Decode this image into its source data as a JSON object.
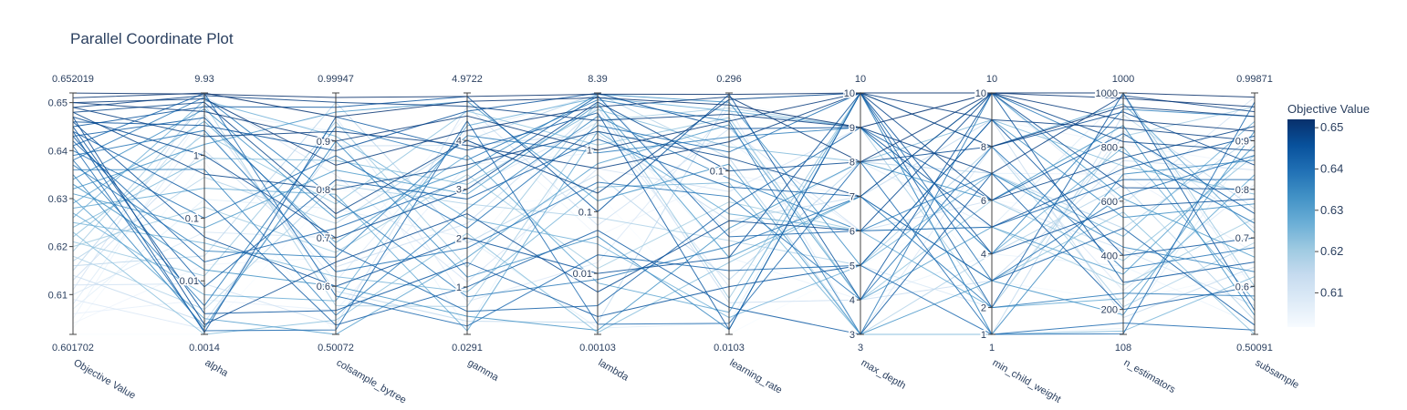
{
  "title": "Parallel Coordinate Plot",
  "colorbar": {
    "title": "Objective Value",
    "colorscale": [
      "#f7fbff",
      "#deebf7",
      "#c6dbef",
      "#9ecae1",
      "#6baed6",
      "#4292c6",
      "#2171b5",
      "#08519c",
      "#08306b"
    ],
    "ticks": [
      "0.61",
      "0.62",
      "0.63",
      "0.64",
      "0.65"
    ],
    "tick_values": [
      0.61,
      0.62,
      0.63,
      0.64,
      0.65
    ],
    "range": [
      0.601702,
      0.652019
    ]
  },
  "chart_data": {
    "type": "parallel_coordinates",
    "title": "Parallel Coordinate Plot",
    "color_variable": "Objective Value",
    "dimensions": [
      {
        "label": "Objective Value",
        "min_label": "0.601702",
        "max_label": "0.652019",
        "range": [
          0.601702,
          0.652019
        ],
        "scale": "linear",
        "ticks": [
          0.61,
          0.62,
          0.63,
          0.64,
          0.65
        ],
        "tick_labels": [
          "0.61",
          "0.62",
          "0.63",
          "0.64",
          "0.65"
        ]
      },
      {
        "label": "alpha",
        "min_label": "0.0014",
        "max_label": "9.93",
        "range": [
          0.0014,
          9.93
        ],
        "scale": "log",
        "ticks": [
          0.01,
          0.1,
          1
        ],
        "tick_labels": [
          "0.01",
          "0.1",
          "1"
        ]
      },
      {
        "label": "colsample_bytree",
        "min_label": "0.50072",
        "max_label": "0.99947",
        "range": [
          0.50072,
          0.99947
        ],
        "scale": "linear",
        "ticks": [
          0.6,
          0.7,
          0.8,
          0.9
        ],
        "tick_labels": [
          "0.6",
          "0.7",
          "0.8",
          "0.9"
        ]
      },
      {
        "label": "gamma",
        "min_label": "0.0291",
        "max_label": "4.9722",
        "range": [
          0.0291,
          4.9722
        ],
        "scale": "linear",
        "ticks": [
          1,
          2,
          3,
          4
        ],
        "tick_labels": [
          "1",
          "2",
          "3",
          "4"
        ]
      },
      {
        "label": "lambda",
        "min_label": "0.00103",
        "max_label": "8.39",
        "range": [
          0.00103,
          8.39
        ],
        "scale": "log",
        "ticks": [
          0.01,
          0.1,
          1
        ],
        "tick_labels": [
          "0.01",
          "0.1",
          "1"
        ]
      },
      {
        "label": "learning_rate",
        "min_label": "0.0103",
        "max_label": "0.296",
        "range": [
          0.0103,
          0.296
        ],
        "scale": "log",
        "ticks": [
          0.1
        ],
        "tick_labels": [
          "0.1"
        ]
      },
      {
        "label": "max_depth",
        "min_label": "3",
        "max_label": "10",
        "range": [
          3,
          10
        ],
        "scale": "linear",
        "ticks": [
          3,
          4,
          5,
          6,
          7,
          8,
          9,
          10
        ],
        "tick_labels": [
          "3",
          "4",
          "5",
          "6",
          "7",
          "8",
          "9",
          "10"
        ]
      },
      {
        "label": "min_child_weight",
        "min_label": "1",
        "max_label": "10",
        "range": [
          1,
          10
        ],
        "scale": "linear",
        "ticks": [
          1,
          2,
          4,
          6,
          8,
          10
        ],
        "tick_labels": [
          "1",
          "2",
          "4",
          "6",
          "8",
          "10"
        ]
      },
      {
        "label": "n_estimators",
        "min_label": "108",
        "max_label": "1000",
        "range": [
          108,
          1000
        ],
        "scale": "linear",
        "ticks": [
          200,
          400,
          600,
          800,
          1000
        ],
        "tick_labels": [
          "200",
          "400",
          "600",
          "800",
          "1000"
        ]
      },
      {
        "label": "subsample",
        "min_label": "0.50091",
        "max_label": "0.99871",
        "range": [
          0.50091,
          0.99871
        ],
        "scale": "linear",
        "ticks": [
          0.6,
          0.7,
          0.8,
          0.9
        ],
        "tick_labels": [
          "0.6",
          "0.7",
          "0.8",
          "0.9"
        ]
      }
    ],
    "trials": [
      [
        0.652,
        9.5,
        0.99,
        4.9,
        8.0,
        0.29,
        10,
        10,
        1000,
        0.99
      ],
      [
        0.651,
        9.9,
        0.95,
        4.8,
        7.0,
        0.25,
        9,
        10,
        980,
        0.97
      ],
      [
        0.65,
        5.0,
        0.9,
        4.5,
        1.0,
        0.2,
        10,
        8,
        950,
        0.95
      ],
      [
        0.65,
        8.0,
        0.85,
        4.2,
        5.0,
        0.28,
        8,
        10,
        900,
        0.92
      ],
      [
        0.649,
        2.0,
        0.92,
        3.9,
        0.5,
        0.15,
        10,
        9,
        870,
        0.9
      ],
      [
        0.649,
        9.0,
        0.98,
        4.7,
        3.0,
        0.22,
        9,
        7,
        990,
        0.96
      ],
      [
        0.648,
        0.5,
        0.8,
        3.5,
        2.0,
        0.12,
        7,
        10,
        820,
        0.88
      ],
      [
        0.648,
        7.0,
        0.75,
        4.0,
        0.2,
        0.27,
        10,
        6,
        760,
        0.93
      ],
      [
        0.647,
        1.0,
        0.7,
        3.0,
        6.0,
        0.1,
        8,
        8,
        930,
        0.85
      ],
      [
        0.647,
        0.002,
        0.65,
        2.5,
        0.005,
        0.05,
        6,
        10,
        650,
        0.8
      ],
      [
        0.646,
        3.0,
        0.88,
        4.6,
        8.3,
        0.18,
        9,
        5,
        720,
        0.91
      ],
      [
        0.646,
        0.05,
        0.6,
        2.0,
        0.01,
        0.03,
        10,
        4,
        580,
        0.78
      ],
      [
        0.645,
        0.003,
        0.55,
        1.5,
        0.002,
        0.02,
        5,
        9,
        400,
        0.7
      ],
      [
        0.645,
        6.0,
        0.97,
        4.9,
        0.1,
        0.29,
        4,
        10,
        300,
        0.65
      ],
      [
        0.644,
        0.2,
        0.52,
        1.0,
        0.05,
        0.015,
        3,
        7,
        200,
        0.6
      ],
      [
        0.644,
        0.0015,
        0.95,
        3.8,
        4.0,
        0.011,
        10,
        2,
        1000,
        0.55
      ],
      [
        0.643,
        0.008,
        0.82,
        2.8,
        1.5,
        0.08,
        7,
        3,
        500,
        0.52
      ],
      [
        0.643,
        4.0,
        0.68,
        0.5,
        0.003,
        0.06,
        9,
        6,
        850,
        0.75
      ],
      [
        0.642,
        0.02,
        0.72,
        3.2,
        7.5,
        0.04,
        6,
        5,
        680,
        0.82
      ],
      [
        0.641,
        9.8,
        0.58,
        0.2,
        0.02,
        0.025,
        5,
        1,
        150,
        0.51
      ],
      [
        0.641,
        0.0016,
        0.51,
        4.4,
        0.0015,
        0.012,
        8,
        1,
        110,
        0.98
      ],
      [
        0.64,
        0.1,
        0.87,
        2.2,
        2.5,
        0.13,
        10,
        3,
        620,
        0.87
      ],
      [
        0.639,
        2.5,
        0.63,
        1.8,
        0.3,
        0.07,
        4,
        8,
        350,
        0.68
      ],
      [
        0.638,
        0.004,
        0.93,
        3.6,
        6.5,
        0.2,
        3,
        10,
        780,
        0.73
      ],
      [
        0.638,
        8.5,
        0.78,
        0.8,
        0.008,
        0.035,
        7,
        2,
        260,
        0.58
      ],
      [
        0.637,
        0.03,
        0.66,
        4.1,
        0.9,
        0.16,
        9,
        4,
        940,
        0.95
      ],
      [
        0.636,
        0.6,
        0.54,
        2.6,
        3.5,
        0.09,
        6,
        7,
        430,
        0.63
      ],
      [
        0.635,
        0.0018,
        0.9,
        1.2,
        0.04,
        0.011,
        10,
        1,
        700,
        0.86
      ],
      [
        0.634,
        5.5,
        0.74,
        3.4,
        8.0,
        0.26,
        5,
        9,
        540,
        0.77
      ],
      [
        0.633,
        0.015,
        0.6,
        0.4,
        0.0012,
        0.045,
        8,
        6,
        880,
        0.54
      ],
      [
        0.632,
        1.5,
        0.96,
        4.8,
        0.15,
        0.11,
        3,
        3,
        180,
        0.92
      ],
      [
        0.631,
        0.07,
        0.84,
        2.9,
        5.5,
        0.03,
        7,
        10,
        610,
        0.66
      ],
      [
        0.63,
        0.0025,
        0.5,
        1.6,
        0.6,
        0.19,
        4,
        5,
        330,
        0.89
      ],
      [
        0.629,
        3.5,
        0.69,
        3.7,
        0.007,
        0.014,
        10,
        8,
        960,
        0.71
      ],
      [
        0.628,
        0.3,
        0.79,
        0.1,
        2.0,
        0.055,
        6,
        2,
        240,
        0.83
      ],
      [
        0.627,
        0.006,
        0.57,
        4.3,
        7.0,
        0.23,
        9,
        4,
        800,
        0.57
      ],
      [
        0.626,
        7.5,
        0.91,
        2.4,
        0.03,
        0.013,
        5,
        7,
        470,
        0.94
      ],
      [
        0.625,
        0.04,
        0.62,
        0.9,
        0.25,
        0.085,
        3,
        1,
        120,
        0.62
      ],
      [
        0.624,
        0.9,
        0.86,
        3.1,
        4.5,
        0.14,
        8,
        9,
        730,
        0.79
      ],
      [
        0.623,
        0.0012,
        0.53,
        2.1,
        0.0011,
        0.028,
        7,
        3,
        560,
        0.5
      ],
      [
        0.622,
        2.2,
        0.77,
        4.6,
        1.2,
        0.21,
        4,
        6,
        380,
        0.87
      ],
      [
        0.621,
        0.012,
        0.94,
        1.4,
        6.0,
        0.017,
        10,
        10,
        1000,
        0.6
      ],
      [
        0.62,
        0.15,
        0.67,
        3.3,
        0.012,
        0.065,
        6,
        5,
        290,
        0.74
      ],
      [
        0.619,
        6.5,
        0.56,
        0.6,
        3.0,
        0.24,
        9,
        2,
        840,
        0.97
      ],
      [
        0.618,
        0.0035,
        0.81,
        2.7,
        0.08,
        0.038,
        5,
        8,
        210,
        0.69
      ],
      [
        0.617,
        0.45,
        0.73,
        4.0,
        8.2,
        0.12,
        3,
        4,
        660,
        0.53
      ],
      [
        0.616,
        0.025,
        0.98,
        1.9,
        0.4,
        0.022,
        8,
        7,
        500,
        0.91
      ],
      [
        0.615,
        4.5,
        0.59,
        0.3,
        0.0016,
        0.27,
        10,
        1,
        920,
        0.76
      ],
      [
        0.614,
        0.0022,
        0.89,
        3.9,
        1.8,
        0.05,
        7,
        9,
        170,
        0.64
      ],
      [
        0.613,
        1.2,
        0.64,
        2.3,
        5.0,
        0.016,
        4,
        3,
        750,
        0.84
      ],
      [
        0.612,
        0.009,
        0.52,
        4.7,
        0.06,
        0.18,
        6,
        6,
        420,
        0.56
      ],
      [
        0.611,
        8.8,
        0.83,
        1.1,
        0.5,
        0.075,
        9,
        10,
        590,
        0.99
      ],
      [
        0.61,
        0.06,
        0.7,
        3.0,
        2.8,
        0.02,
        5,
        2,
        860,
        0.72
      ],
      [
        0.609,
        0.0017,
        0.95,
        0.7,
        0.015,
        0.24,
        3,
        8,
        270,
        0.81
      ],
      [
        0.608,
        2.8,
        0.61,
        4.2,
        7.8,
        0.042,
        8,
        5,
        990,
        0.59
      ],
      [
        0.607,
        0.2,
        0.76,
        2.0,
        0.0013,
        0.012,
        10,
        1,
        130,
        0.9
      ],
      [
        0.606,
        0.005,
        0.55,
        3.5,
        0.9,
        0.15,
        6,
        7,
        700,
        0.67
      ],
      [
        0.605,
        5.0,
        0.92,
        0.15,
        4.0,
        0.03,
        4,
        4,
        360,
        0.52
      ],
      [
        0.604,
        0.018,
        0.66,
        4.5,
        0.04,
        0.095,
        7,
        9,
        810,
        0.85
      ],
      [
        0.603,
        0.8,
        0.5,
        1.7,
        6.8,
        0.26,
        9,
        3,
        230,
        0.63
      ],
      [
        0.6017,
        0.0014,
        0.8,
        2.6,
        0.2,
        0.0103,
        5,
        6,
        540,
        0.78
      ]
    ]
  }
}
